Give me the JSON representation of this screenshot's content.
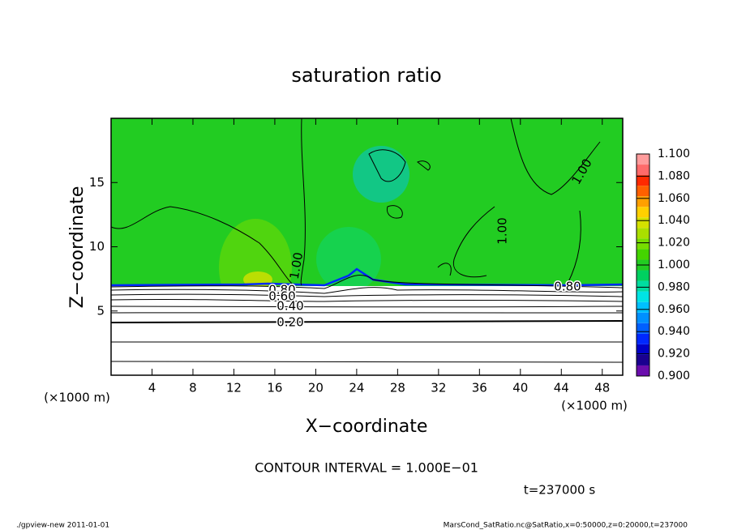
{
  "chart_data": {
    "type": "contour",
    "title": "saturation ratio",
    "xlabel": "X−coordinate",
    "ylabel": "Z−coordinate",
    "x_unit_left": "(×1000 m)",
    "x_unit_right": "(×1000 m)",
    "xlim": [
      0,
      50
    ],
    "xticks": [
      4,
      8,
      12,
      16,
      20,
      24,
      28,
      32,
      36,
      40,
      44,
      48
    ],
    "ylim": [
      0,
      20
    ],
    "yticks": [
      5,
      10,
      15
    ],
    "colorbar": {
      "lim": [
        0.9,
        1.1
      ],
      "ticks": [
        {
          "value": 0.9,
          "label": "0.900"
        },
        {
          "value": 0.92,
          "label": "0.920"
        },
        {
          "value": 0.94,
          "label": "0.940"
        },
        {
          "value": 0.96,
          "label": "0.960"
        },
        {
          "value": 0.98,
          "label": "0.980"
        },
        {
          "value": 1.0,
          "label": "1.000"
        },
        {
          "value": 1.02,
          "label": "1.020"
        },
        {
          "value": 1.04,
          "label": "1.040"
        },
        {
          "value": 1.06,
          "label": "1.060"
        },
        {
          "value": 1.08,
          "label": "1.080"
        },
        {
          "value": 1.1,
          "label": "1.100"
        }
      ],
      "colors": [
        "#6a0dad",
        "#1a0090",
        "#0000c8",
        "#0028ff",
        "#0060ff",
        "#0090ff",
        "#00c0ff",
        "#00e4e4",
        "#00dca0",
        "#00d060",
        "#22cc22",
        "#44d400",
        "#77dd00",
        "#aade00",
        "#d4e000",
        "#ffd000",
        "#ffa000",
        "#ff6000",
        "#ff2a00",
        "#ff6a6a",
        "#ff9c9c"
      ]
    },
    "contour_labels": [
      "1.00",
      "1.00",
      "1.00",
      "0.80",
      "0.80",
      "0.60",
      "0.40",
      "0.20"
    ],
    "contour_interval": "CONTOUR INTERVAL = 1.000E−01",
    "time_label": "t=237000 s",
    "footer_left": "./gpview-new  2011-01-01",
    "footer_right": "MarsCond_SatRatio.nc@SatRatio,x=0:50000,z=0:20000,t=237000"
  }
}
